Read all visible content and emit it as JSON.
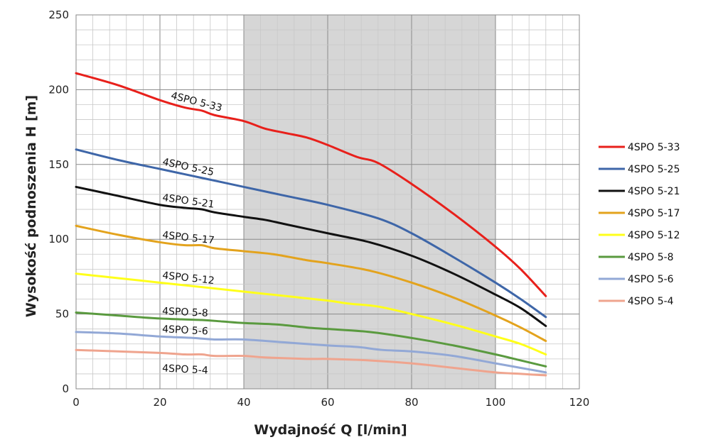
{
  "chart_data": {
    "type": "line",
    "title": "",
    "xlabel": "Wydajność Q [l/min]",
    "ylabel": "Wysokość podnoszenia H [m]",
    "xlim": [
      0,
      120
    ],
    "ylim": [
      0,
      250
    ],
    "x_ticks": [
      0,
      20,
      40,
      60,
      80,
      100,
      120
    ],
    "y_ticks": [
      0,
      50,
      100,
      150,
      200,
      250
    ],
    "x_minor_step": 4,
    "y_minor_step": 10,
    "grid": true,
    "legend_position": "right",
    "shaded_range": [
      40,
      100
    ],
    "colors": {
      "grid_major": "#8a8a8a",
      "grid_minor": "#c8c8c8",
      "shade": "#d6d6d6"
    },
    "series": [
      {
        "name": "4SPO 5-33",
        "label": "4SPO 5-33",
        "color": "#e8201b",
        "points": [
          [
            0,
            211
          ],
          [
            10,
            203
          ],
          [
            20,
            193
          ],
          [
            26,
            188
          ],
          [
            30,
            186
          ],
          [
            33,
            183
          ],
          [
            40,
            179
          ],
          [
            45,
            174
          ],
          [
            50,
            171
          ],
          [
            55,
            168
          ],
          [
            60,
            163
          ],
          [
            67,
            155
          ],
          [
            72,
            151
          ],
          [
            80,
            137
          ],
          [
            90,
            117
          ],
          [
            100,
            95
          ],
          [
            106,
            80
          ],
          [
            112,
            62
          ]
        ]
      },
      {
        "name": "4SPO 5-25",
        "label": "4SPO 5-25",
        "color": "#3e66a8",
        "points": [
          [
            0,
            160
          ],
          [
            10,
            153
          ],
          [
            20,
            147
          ],
          [
            30,
            141
          ],
          [
            40,
            135
          ],
          [
            50,
            129
          ],
          [
            60,
            123
          ],
          [
            72,
            114
          ],
          [
            80,
            104
          ],
          [
            90,
            88
          ],
          [
            100,
            71
          ],
          [
            106,
            60
          ],
          [
            112,
            48
          ]
        ]
      },
      {
        "name": "4SPO 5-21",
        "label": "4SPO 5-21",
        "color": "#111111",
        "points": [
          [
            0,
            135
          ],
          [
            10,
            129
          ],
          [
            20,
            123
          ],
          [
            26,
            121
          ],
          [
            30,
            120
          ],
          [
            33,
            118
          ],
          [
            40,
            115
          ],
          [
            45,
            113
          ],
          [
            50,
            110
          ],
          [
            60,
            104
          ],
          [
            70,
            98
          ],
          [
            80,
            89
          ],
          [
            90,
            77
          ],
          [
            100,
            63
          ],
          [
            106,
            54
          ],
          [
            112,
            42
          ]
        ]
      },
      {
        "name": "4SPO 5-17",
        "label": "4SPO 5-17",
        "color": "#e3a31d",
        "points": [
          [
            0,
            109
          ],
          [
            10,
            103
          ],
          [
            20,
            98
          ],
          [
            26,
            96
          ],
          [
            30,
            96
          ],
          [
            33,
            94
          ],
          [
            40,
            92
          ],
          [
            47,
            90
          ],
          [
            55,
            86
          ],
          [
            60,
            84
          ],
          [
            70,
            79
          ],
          [
            80,
            71
          ],
          [
            90,
            61
          ],
          [
            100,
            49
          ],
          [
            106,
            41
          ],
          [
            112,
            32
          ]
        ]
      },
      {
        "name": "4SPO 5-12",
        "label": "4SPO 5-12",
        "color": "#ffff1a",
        "points": [
          [
            0,
            77
          ],
          [
            10,
            74
          ],
          [
            20,
            71
          ],
          [
            30,
            68
          ],
          [
            40,
            65
          ],
          [
            50,
            62
          ],
          [
            60,
            59
          ],
          [
            65,
            57
          ],
          [
            72,
            55
          ],
          [
            80,
            50
          ],
          [
            90,
            43
          ],
          [
            100,
            35
          ],
          [
            106,
            30
          ],
          [
            112,
            23
          ]
        ]
      },
      {
        "name": "4SPO 5-8",
        "label": "4SPO 5-8",
        "color": "#5a9a3f",
        "points": [
          [
            0,
            51
          ],
          [
            10,
            49
          ],
          [
            20,
            47
          ],
          [
            30,
            46
          ],
          [
            35,
            45
          ],
          [
            40,
            44
          ],
          [
            48,
            43
          ],
          [
            55,
            41
          ],
          [
            60,
            40
          ],
          [
            70,
            38
          ],
          [
            80,
            34
          ],
          [
            90,
            29
          ],
          [
            100,
            23
          ],
          [
            106,
            19
          ],
          [
            112,
            15
          ]
        ]
      },
      {
        "name": "4SPO 5-6",
        "label": "4SPO 5-6",
        "color": "#92a8d6",
        "points": [
          [
            0,
            38
          ],
          [
            10,
            37
          ],
          [
            20,
            35
          ],
          [
            28,
            34
          ],
          [
            33,
            33
          ],
          [
            40,
            33
          ],
          [
            50,
            31
          ],
          [
            60,
            29
          ],
          [
            67,
            28
          ],
          [
            73,
            26
          ],
          [
            80,
            25
          ],
          [
            90,
            22
          ],
          [
            100,
            17
          ],
          [
            106,
            14
          ],
          [
            112,
            11
          ]
        ]
      },
      {
        "name": "4SPO 5-4",
        "label": "4SPO 5-4",
        "color": "#efa48e",
        "points": [
          [
            0,
            26
          ],
          [
            10,
            25
          ],
          [
            20,
            24
          ],
          [
            26,
            23
          ],
          [
            30,
            23
          ],
          [
            33,
            22
          ],
          [
            40,
            22
          ],
          [
            45,
            21
          ],
          [
            55,
            20
          ],
          [
            60,
            20
          ],
          [
            70,
            19
          ],
          [
            80,
            17
          ],
          [
            90,
            14
          ],
          [
            100,
            11
          ],
          [
            106,
            10
          ],
          [
            112,
            9
          ]
        ]
      }
    ],
    "annotations": [
      {
        "series": "4SPO 5-33",
        "text": "4SPO 5-33"
      },
      {
        "series": "4SPO 5-25",
        "text": "4SPO 5-25"
      },
      {
        "series": "4SPO 5-21",
        "text": "4SPO 5-21"
      },
      {
        "series": "4SPO 5-17",
        "text": "4SPO 5-17"
      },
      {
        "series": "4SPO 5-12",
        "text": "4SPO 5-12"
      },
      {
        "series": "4SPO 5-8",
        "text": "4SPO 5-8"
      },
      {
        "series": "4SPO 5-6",
        "text": "4SPO 5-6"
      },
      {
        "series": "4SPO 5-4",
        "text": "4SPO 5-4"
      }
    ]
  }
}
